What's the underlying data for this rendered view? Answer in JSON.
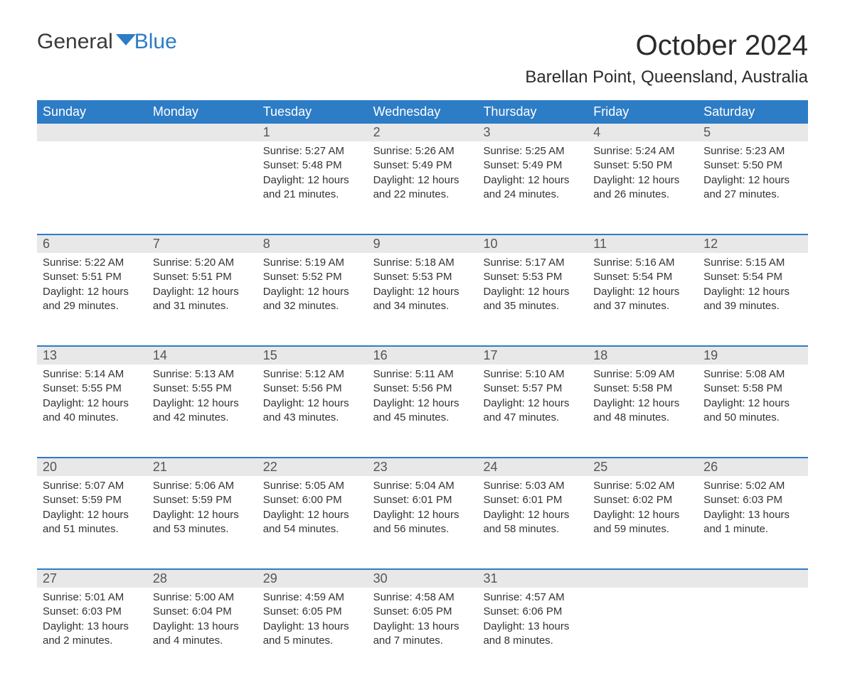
{
  "brand": {
    "word1": "General",
    "word2": "Blue"
  },
  "title": "October 2024",
  "location": "Barellan Point, Queensland, Australia",
  "dow": [
    "Sunday",
    "Monday",
    "Tuesday",
    "Wednesday",
    "Thursday",
    "Friday",
    "Saturday"
  ],
  "colors": {
    "header_bg": "#2d7cc6",
    "header_text": "#ffffff",
    "num_strip_bg": "#e8e8e8",
    "week_divider": "#2d7cc6",
    "body_text": "#333333",
    "brand_gray": "#3a3a3a",
    "brand_blue": "#2d7cc6",
    "page_bg": "#ffffff"
  },
  "typography": {
    "title_fontsize": 40,
    "location_fontsize": 24,
    "dow_fontsize": 18,
    "daynum_fontsize": 18,
    "body_fontsize": 15
  },
  "layout": {
    "columns": 7,
    "rows": 5,
    "first_day_column_index": 2
  },
  "weeks": [
    [
      {
        "n": "",
        "sunrise": "",
        "sunset": "",
        "daylight1": "",
        "daylight2": ""
      },
      {
        "n": "",
        "sunrise": "",
        "sunset": "",
        "daylight1": "",
        "daylight2": ""
      },
      {
        "n": "1",
        "sunrise": "Sunrise: 5:27 AM",
        "sunset": "Sunset: 5:48 PM",
        "daylight1": "Daylight: 12 hours",
        "daylight2": "and 21 minutes."
      },
      {
        "n": "2",
        "sunrise": "Sunrise: 5:26 AM",
        "sunset": "Sunset: 5:49 PM",
        "daylight1": "Daylight: 12 hours",
        "daylight2": "and 22 minutes."
      },
      {
        "n": "3",
        "sunrise": "Sunrise: 5:25 AM",
        "sunset": "Sunset: 5:49 PM",
        "daylight1": "Daylight: 12 hours",
        "daylight2": "and 24 minutes."
      },
      {
        "n": "4",
        "sunrise": "Sunrise: 5:24 AM",
        "sunset": "Sunset: 5:50 PM",
        "daylight1": "Daylight: 12 hours",
        "daylight2": "and 26 minutes."
      },
      {
        "n": "5",
        "sunrise": "Sunrise: 5:23 AM",
        "sunset": "Sunset: 5:50 PM",
        "daylight1": "Daylight: 12 hours",
        "daylight2": "and 27 minutes."
      }
    ],
    [
      {
        "n": "6",
        "sunrise": "Sunrise: 5:22 AM",
        "sunset": "Sunset: 5:51 PM",
        "daylight1": "Daylight: 12 hours",
        "daylight2": "and 29 minutes."
      },
      {
        "n": "7",
        "sunrise": "Sunrise: 5:20 AM",
        "sunset": "Sunset: 5:51 PM",
        "daylight1": "Daylight: 12 hours",
        "daylight2": "and 31 minutes."
      },
      {
        "n": "8",
        "sunrise": "Sunrise: 5:19 AM",
        "sunset": "Sunset: 5:52 PM",
        "daylight1": "Daylight: 12 hours",
        "daylight2": "and 32 minutes."
      },
      {
        "n": "9",
        "sunrise": "Sunrise: 5:18 AM",
        "sunset": "Sunset: 5:53 PM",
        "daylight1": "Daylight: 12 hours",
        "daylight2": "and 34 minutes."
      },
      {
        "n": "10",
        "sunrise": "Sunrise: 5:17 AM",
        "sunset": "Sunset: 5:53 PM",
        "daylight1": "Daylight: 12 hours",
        "daylight2": "and 35 minutes."
      },
      {
        "n": "11",
        "sunrise": "Sunrise: 5:16 AM",
        "sunset": "Sunset: 5:54 PM",
        "daylight1": "Daylight: 12 hours",
        "daylight2": "and 37 minutes."
      },
      {
        "n": "12",
        "sunrise": "Sunrise: 5:15 AM",
        "sunset": "Sunset: 5:54 PM",
        "daylight1": "Daylight: 12 hours",
        "daylight2": "and 39 minutes."
      }
    ],
    [
      {
        "n": "13",
        "sunrise": "Sunrise: 5:14 AM",
        "sunset": "Sunset: 5:55 PM",
        "daylight1": "Daylight: 12 hours",
        "daylight2": "and 40 minutes."
      },
      {
        "n": "14",
        "sunrise": "Sunrise: 5:13 AM",
        "sunset": "Sunset: 5:55 PM",
        "daylight1": "Daylight: 12 hours",
        "daylight2": "and 42 minutes."
      },
      {
        "n": "15",
        "sunrise": "Sunrise: 5:12 AM",
        "sunset": "Sunset: 5:56 PM",
        "daylight1": "Daylight: 12 hours",
        "daylight2": "and 43 minutes."
      },
      {
        "n": "16",
        "sunrise": "Sunrise: 5:11 AM",
        "sunset": "Sunset: 5:56 PM",
        "daylight1": "Daylight: 12 hours",
        "daylight2": "and 45 minutes."
      },
      {
        "n": "17",
        "sunrise": "Sunrise: 5:10 AM",
        "sunset": "Sunset: 5:57 PM",
        "daylight1": "Daylight: 12 hours",
        "daylight2": "and 47 minutes."
      },
      {
        "n": "18",
        "sunrise": "Sunrise: 5:09 AM",
        "sunset": "Sunset: 5:58 PM",
        "daylight1": "Daylight: 12 hours",
        "daylight2": "and 48 minutes."
      },
      {
        "n": "19",
        "sunrise": "Sunrise: 5:08 AM",
        "sunset": "Sunset: 5:58 PM",
        "daylight1": "Daylight: 12 hours",
        "daylight2": "and 50 minutes."
      }
    ],
    [
      {
        "n": "20",
        "sunrise": "Sunrise: 5:07 AM",
        "sunset": "Sunset: 5:59 PM",
        "daylight1": "Daylight: 12 hours",
        "daylight2": "and 51 minutes."
      },
      {
        "n": "21",
        "sunrise": "Sunrise: 5:06 AM",
        "sunset": "Sunset: 5:59 PM",
        "daylight1": "Daylight: 12 hours",
        "daylight2": "and 53 minutes."
      },
      {
        "n": "22",
        "sunrise": "Sunrise: 5:05 AM",
        "sunset": "Sunset: 6:00 PM",
        "daylight1": "Daylight: 12 hours",
        "daylight2": "and 54 minutes."
      },
      {
        "n": "23",
        "sunrise": "Sunrise: 5:04 AM",
        "sunset": "Sunset: 6:01 PM",
        "daylight1": "Daylight: 12 hours",
        "daylight2": "and 56 minutes."
      },
      {
        "n": "24",
        "sunrise": "Sunrise: 5:03 AM",
        "sunset": "Sunset: 6:01 PM",
        "daylight1": "Daylight: 12 hours",
        "daylight2": "and 58 minutes."
      },
      {
        "n": "25",
        "sunrise": "Sunrise: 5:02 AM",
        "sunset": "Sunset: 6:02 PM",
        "daylight1": "Daylight: 12 hours",
        "daylight2": "and 59 minutes."
      },
      {
        "n": "26",
        "sunrise": "Sunrise: 5:02 AM",
        "sunset": "Sunset: 6:03 PM",
        "daylight1": "Daylight: 13 hours",
        "daylight2": "and 1 minute."
      }
    ],
    [
      {
        "n": "27",
        "sunrise": "Sunrise: 5:01 AM",
        "sunset": "Sunset: 6:03 PM",
        "daylight1": "Daylight: 13 hours",
        "daylight2": "and 2 minutes."
      },
      {
        "n": "28",
        "sunrise": "Sunrise: 5:00 AM",
        "sunset": "Sunset: 6:04 PM",
        "daylight1": "Daylight: 13 hours",
        "daylight2": "and 4 minutes."
      },
      {
        "n": "29",
        "sunrise": "Sunrise: 4:59 AM",
        "sunset": "Sunset: 6:05 PM",
        "daylight1": "Daylight: 13 hours",
        "daylight2": "and 5 minutes."
      },
      {
        "n": "30",
        "sunrise": "Sunrise: 4:58 AM",
        "sunset": "Sunset: 6:05 PM",
        "daylight1": "Daylight: 13 hours",
        "daylight2": "and 7 minutes."
      },
      {
        "n": "31",
        "sunrise": "Sunrise: 4:57 AM",
        "sunset": "Sunset: 6:06 PM",
        "daylight1": "Daylight: 13 hours",
        "daylight2": "and 8 minutes."
      },
      {
        "n": "",
        "sunrise": "",
        "sunset": "",
        "daylight1": "",
        "daylight2": ""
      },
      {
        "n": "",
        "sunrise": "",
        "sunset": "",
        "daylight1": "",
        "daylight2": ""
      }
    ]
  ]
}
